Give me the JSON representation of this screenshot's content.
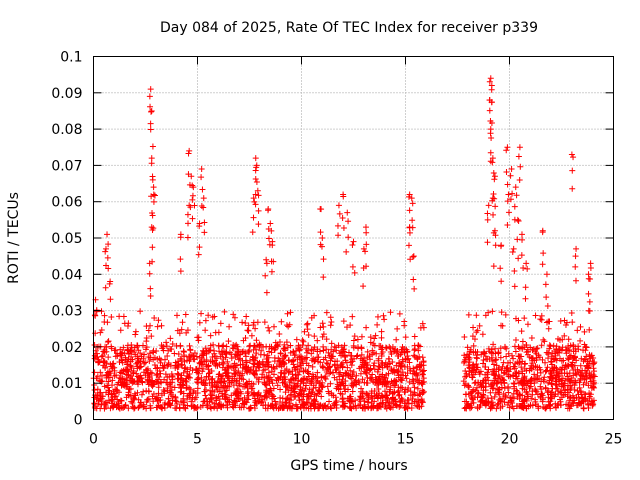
{
  "chart_data": {
    "type": "scatter",
    "title": "Day 084 of 2025, Rate Of TEC Index for receiver p339",
    "xlabel": "GPS time / hours",
    "ylabel": "ROTI / TECUs",
    "xlim": [
      0,
      25
    ],
    "ylim": [
      0,
      0.1
    ],
    "xticks": [
      "0",
      "5",
      "10",
      "15",
      "20",
      "25"
    ],
    "yticks": [
      "0",
      "0.01",
      "0.02",
      "0.03",
      "0.04",
      "0.05",
      "0.06",
      "0.07",
      "0.08",
      "0.09",
      "0.1"
    ],
    "grid": true,
    "marker": "+",
    "color": "#ff0000",
    "data_gap": [
      15.9,
      17.8
    ],
    "density_segments": [
      {
        "t0": 0.0,
        "t1": 15.9,
        "median": 0.011,
        "upper": 0.03
      },
      {
        "t0": 17.8,
        "t1": 24.1,
        "median": 0.011,
        "upper": 0.03
      }
    ],
    "outliers": [
      [
        0.1,
        0.033
      ],
      [
        0.6,
        0.047
      ],
      [
        0.65,
        0.051
      ],
      [
        0.8,
        0.038
      ],
      [
        2.75,
        0.091
      ],
      [
        2.8,
        0.085
      ],
      [
        2.8,
        0.072
      ],
      [
        2.85,
        0.066
      ],
      [
        2.9,
        0.062
      ],
      [
        2.8,
        0.053
      ],
      [
        2.7,
        0.043
      ],
      [
        4.6,
        0.074
      ],
      [
        4.7,
        0.067
      ],
      [
        4.6,
        0.059
      ],
      [
        4.8,
        0.064
      ],
      [
        5.2,
        0.069
      ],
      [
        5.3,
        0.061
      ],
      [
        5.1,
        0.054
      ],
      [
        4.2,
        0.051
      ],
      [
        7.8,
        0.072
      ],
      [
        7.85,
        0.07
      ],
      [
        7.7,
        0.061
      ],
      [
        7.9,
        0.063
      ],
      [
        8.4,
        0.058
      ],
      [
        8.5,
        0.054
      ],
      [
        8.6,
        0.049
      ],
      [
        8.3,
        0.044
      ],
      [
        10.9,
        0.058
      ],
      [
        11.0,
        0.05
      ],
      [
        11.8,
        0.059
      ],
      [
        12.0,
        0.062
      ],
      [
        12.2,
        0.057
      ],
      [
        12.5,
        0.049
      ],
      [
        13.1,
        0.053
      ],
      [
        13.0,
        0.047
      ],
      [
        15.2,
        0.062
      ],
      [
        15.3,
        0.061
      ],
      [
        15.2,
        0.053
      ],
      [
        15.4,
        0.045
      ],
      [
        19.1,
        0.094
      ],
      [
        19.15,
        0.092
      ],
      [
        19.05,
        0.088
      ],
      [
        19.1,
        0.08
      ],
      [
        19.2,
        0.072
      ],
      [
        19.3,
        0.067
      ],
      [
        19.2,
        0.061
      ],
      [
        19.0,
        0.059
      ],
      [
        19.3,
        0.052
      ],
      [
        19.6,
        0.048
      ],
      [
        19.9,
        0.075
      ],
      [
        20.5,
        0.075
      ],
      [
        20.1,
        0.069
      ],
      [
        20.3,
        0.064
      ],
      [
        19.95,
        0.062
      ],
      [
        20.4,
        0.055
      ],
      [
        20.6,
        0.051
      ],
      [
        20.2,
        0.047
      ],
      [
        20.8,
        0.043
      ],
      [
        21.6,
        0.052
      ],
      [
        21.8,
        0.04
      ],
      [
        23.0,
        0.073
      ],
      [
        23.2,
        0.047
      ],
      [
        23.9,
        0.043
      ],
      [
        23.8,
        0.04
      ]
    ]
  }
}
